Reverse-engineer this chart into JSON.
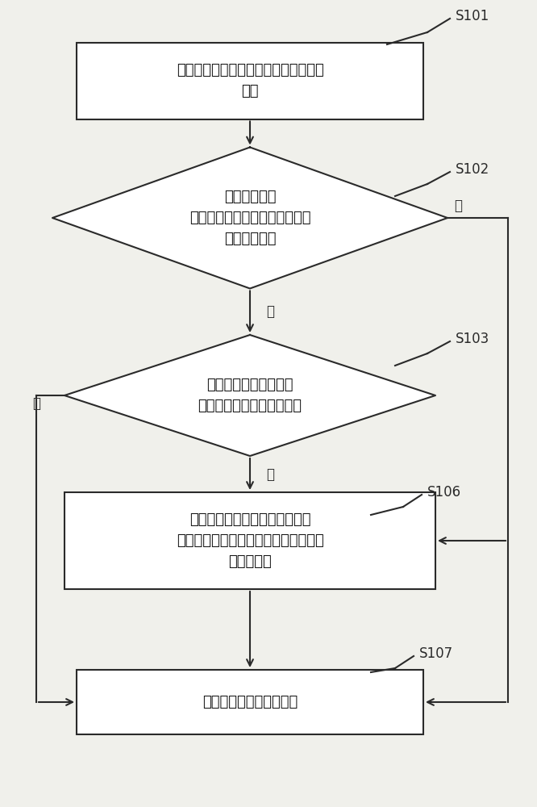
{
  "bg_color": "#f0f0eb",
  "box_color": "#ffffff",
  "border_color": "#2a2a2a",
  "text_color": "#111111",
  "arrow_color": "#2a2a2a",
  "label_color": "#2a2a2a",
  "s101_label": "S101",
  "s102_label": "S102",
  "s103_label": "S103",
  "s106_label": "S106",
  "s107_label": "S107",
  "box1_text": "获取电池管理系统发送的本次充电需求\n功率",
  "diamond2_text": "判断本次充电\n需求功率与上一次的充电机输出\n功率是否相同",
  "diamond3_text": "判断本次充电机温度值\n是否在温度保护阀值范围内",
  "box6_text": "以功率偏差和本次充电机温度值\n为输入量，根据模糊算法计算本次充电\n机输出功率",
  "box7_text": "输出本次充电机输出功率",
  "yes_label_d2": "是",
  "no_label_d2": "否",
  "yes_label_d3": "是",
  "no_label_d3": "否",
  "font_size_main": 13,
  "font_size_step": 12,
  "font_size_yesno": 12
}
